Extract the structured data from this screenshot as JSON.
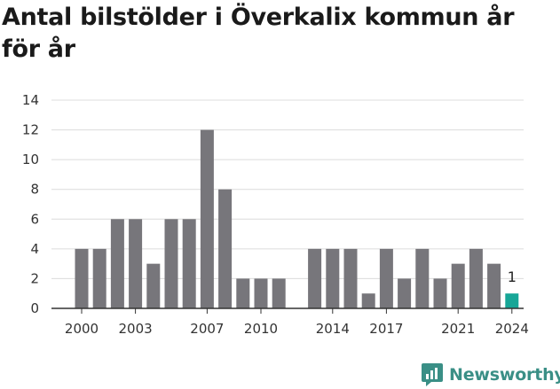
{
  "title": "Antal bilstölder i Överkalix kommun år för år",
  "brand": {
    "name": "Newsworthy",
    "color": "#3a8f86"
  },
  "colors": {
    "bar": "#77767b",
    "highlight": "#17a697",
    "grid": "#dcdcdc",
    "axis": "#333333"
  },
  "chart_data": {
    "type": "bar",
    "title": "Antal bilstölder i Överkalix kommun år för år",
    "xlabel": "",
    "ylabel": "",
    "ylim": [
      0,
      14
    ],
    "yticks": [
      0,
      2,
      4,
      6,
      8,
      10,
      12,
      14
    ],
    "grid": true,
    "x": [
      2000,
      2001,
      2002,
      2003,
      2004,
      2005,
      2006,
      2007,
      2008,
      2009,
      2010,
      2011,
      2012,
      2013,
      2014,
      2015,
      2016,
      2017,
      2018,
      2019,
      2020,
      2021,
      2022,
      2023,
      2024
    ],
    "values": [
      4,
      4,
      6,
      6,
      3,
      6,
      6,
      12,
      8,
      2,
      2,
      2,
      null,
      4,
      4,
      4,
      1,
      4,
      2,
      4,
      2,
      3,
      4,
      3,
      1
    ],
    "xticks": [
      2000,
      2003,
      2007,
      2010,
      2014,
      2017,
      2021,
      2024
    ],
    "highlight": {
      "x": 2024,
      "label": "1"
    }
  }
}
